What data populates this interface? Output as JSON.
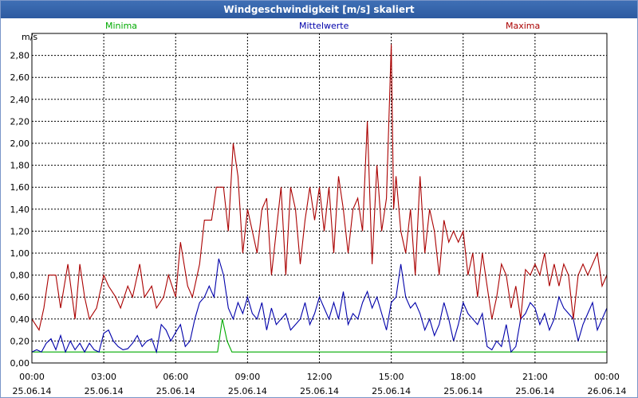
{
  "window": {
    "title": "Windgeschwindigkeit [m/s] skaliert"
  },
  "colors": {
    "minima": "#00aa00",
    "mittel": "#0000aa",
    "maxima": "#aa0000",
    "titlebar": "#2c5aa0"
  },
  "chart_data": {
    "type": "line",
    "title": "Windgeschwindigkeit [m/s] skaliert",
    "ylabel": "m/s",
    "ylim": [
      0,
      3.0
    ],
    "xlim": [
      0,
      24
    ],
    "grid": true,
    "yticks": [
      "0,00",
      "0,20",
      "0,40",
      "0,60",
      "0,80",
      "1,00",
      "1,20",
      "1,40",
      "1,60",
      "1,80",
      "2,00",
      "2,20",
      "2,40",
      "2,60",
      "2,80"
    ],
    "xticks": [
      {
        "time": "00:00",
        "date": "25.06.14"
      },
      {
        "time": "03:00",
        "date": "25.06.14"
      },
      {
        "time": "06:00",
        "date": "25.06.14"
      },
      {
        "time": "09:00",
        "date": "25.06.14"
      },
      {
        "time": "12:00",
        "date": "25.06.14"
      },
      {
        "time": "15:00",
        "date": "25.06.14"
      },
      {
        "time": "18:00",
        "date": "25.06.14"
      },
      {
        "time": "21:00",
        "date": "25.06.14"
      },
      {
        "time": "00:00",
        "date": "26.06.14"
      }
    ],
    "series": [
      {
        "name": "Minima",
        "x": [
          0,
          7.75,
          7.95,
          8.15,
          8.35,
          24
        ],
        "values": [
          0.1,
          0.1,
          0.4,
          0.2,
          0.1,
          0.1
        ]
      },
      {
        "name": "Mittelwerte",
        "x": [
          0.0,
          0.2,
          0.4,
          0.6,
          0.8,
          1.0,
          1.2,
          1.4,
          1.6,
          1.8,
          2.0,
          2.2,
          2.4,
          2.6,
          2.8,
          3.0,
          3.2,
          3.4,
          3.6,
          3.8,
          4.0,
          4.2,
          4.4,
          4.6,
          4.8,
          5.0,
          5.2,
          5.4,
          5.6,
          5.8,
          6.0,
          6.2,
          6.4,
          6.6,
          6.8,
          7.0,
          7.2,
          7.4,
          7.6,
          7.8,
          8.0,
          8.2,
          8.4,
          8.6,
          8.8,
          9.0,
          9.2,
          9.4,
          9.6,
          9.8,
          10.0,
          10.2,
          10.4,
          10.6,
          10.8,
          11.0,
          11.2,
          11.4,
          11.6,
          11.8,
          12.0,
          12.2,
          12.4,
          12.6,
          12.8,
          13.0,
          13.2,
          13.4,
          13.6,
          13.8,
          14.0,
          14.2,
          14.4,
          14.6,
          14.8,
          15.0,
          15.2,
          15.4,
          15.6,
          15.8,
          16.0,
          16.2,
          16.4,
          16.6,
          16.8,
          17.0,
          17.2,
          17.4,
          17.6,
          17.8,
          18.0,
          18.2,
          18.4,
          18.6,
          18.8,
          19.0,
          19.2,
          19.4,
          19.6,
          19.8,
          20.0,
          20.2,
          20.4,
          20.6,
          20.8,
          21.0,
          21.2,
          21.4,
          21.6,
          21.8,
          22.0,
          22.2,
          22.4,
          22.6,
          22.8,
          23.0,
          23.2,
          23.4,
          23.6,
          23.8,
          24.0
        ],
        "values": [
          0.1,
          0.12,
          0.1,
          0.18,
          0.22,
          0.12,
          0.25,
          0.1,
          0.2,
          0.12,
          0.18,
          0.1,
          0.18,
          0.12,
          0.1,
          0.27,
          0.3,
          0.2,
          0.15,
          0.12,
          0.13,
          0.18,
          0.25,
          0.15,
          0.2,
          0.22,
          0.1,
          0.35,
          0.3,
          0.2,
          0.28,
          0.35,
          0.15,
          0.2,
          0.4,
          0.55,
          0.6,
          0.7,
          0.6,
          0.95,
          0.8,
          0.5,
          0.4,
          0.55,
          0.45,
          0.6,
          0.45,
          0.4,
          0.55,
          0.3,
          0.5,
          0.35,
          0.4,
          0.45,
          0.3,
          0.35,
          0.4,
          0.55,
          0.35,
          0.45,
          0.6,
          0.5,
          0.4,
          0.55,
          0.4,
          0.65,
          0.35,
          0.45,
          0.4,
          0.55,
          0.65,
          0.5,
          0.6,
          0.45,
          0.3,
          0.55,
          0.6,
          0.9,
          0.6,
          0.5,
          0.55,
          0.45,
          0.3,
          0.4,
          0.25,
          0.35,
          0.55,
          0.4,
          0.2,
          0.35,
          0.55,
          0.45,
          0.4,
          0.35,
          0.45,
          0.15,
          0.12,
          0.2,
          0.15,
          0.35,
          0.1,
          0.15,
          0.4,
          0.45,
          0.55,
          0.5,
          0.35,
          0.45,
          0.3,
          0.4,
          0.6,
          0.5,
          0.45,
          0.4,
          0.2,
          0.35,
          0.45,
          0.55,
          0.3,
          0.4,
          0.5
        ],
        "color": "#0000aa"
      },
      {
        "name": "Maxima",
        "x": [
          0.0,
          0.3,
          0.5,
          0.7,
          1.0,
          1.2,
          1.5,
          1.8,
          2.0,
          2.2,
          2.4,
          2.7,
          3.0,
          3.2,
          3.5,
          3.7,
          4.0,
          4.2,
          4.5,
          4.7,
          5.0,
          5.2,
          5.5,
          5.7,
          6.0,
          6.2,
          6.5,
          6.7,
          7.0,
          7.2,
          7.5,
          7.7,
          8.0,
          8.2,
          8.4,
          8.6,
          8.8,
          9.0,
          9.2,
          9.4,
          9.6,
          9.8,
          10.0,
          10.2,
          10.4,
          10.6,
          10.8,
          11.0,
          11.2,
          11.4,
          11.6,
          11.8,
          12.0,
          12.2,
          12.4,
          12.6,
          12.8,
          13.0,
          13.2,
          13.4,
          13.6,
          13.8,
          14.0,
          14.2,
          14.4,
          14.6,
          14.8,
          15.0,
          15.1,
          15.2,
          15.4,
          15.6,
          15.8,
          16.0,
          16.2,
          16.4,
          16.6,
          16.8,
          17.0,
          17.2,
          17.4,
          17.6,
          17.8,
          18.0,
          18.2,
          18.4,
          18.6,
          18.8,
          19.0,
          19.2,
          19.4,
          19.6,
          19.8,
          20.0,
          20.2,
          20.4,
          20.6,
          20.8,
          21.0,
          21.2,
          21.4,
          21.6,
          21.8,
          22.0,
          22.2,
          22.4,
          22.6,
          22.8,
          23.0,
          23.2,
          23.4,
          23.6,
          23.8,
          24.0
        ],
        "values": [
          0.4,
          0.3,
          0.5,
          0.8,
          0.8,
          0.5,
          0.9,
          0.4,
          0.9,
          0.6,
          0.4,
          0.5,
          0.8,
          0.7,
          0.6,
          0.5,
          0.7,
          0.6,
          0.9,
          0.6,
          0.7,
          0.5,
          0.6,
          0.8,
          0.6,
          1.1,
          0.7,
          0.6,
          0.9,
          1.3,
          1.3,
          1.6,
          1.6,
          1.2,
          2.0,
          1.7,
          1.0,
          1.4,
          1.2,
          1.0,
          1.4,
          1.5,
          0.8,
          1.2,
          1.6,
          0.8,
          1.6,
          1.4,
          0.9,
          1.3,
          1.6,
          1.3,
          1.6,
          1.2,
          1.6,
          1.0,
          1.7,
          1.4,
          1.0,
          1.4,
          1.5,
          1.2,
          2.2,
          0.9,
          1.8,
          1.2,
          1.5,
          2.9,
          1.4,
          1.7,
          1.2,
          1.0,
          1.4,
          0.8,
          1.7,
          1.0,
          1.4,
          1.2,
          0.8,
          1.3,
          1.1,
          1.2,
          1.1,
          1.2,
          0.8,
          1.0,
          0.6,
          1.0,
          0.7,
          0.4,
          0.6,
          0.9,
          0.8,
          0.5,
          0.7,
          0.4,
          0.85,
          0.8,
          0.9,
          0.8,
          1.0,
          0.7,
          0.9,
          0.7,
          0.9,
          0.8,
          0.4,
          0.8,
          0.9,
          0.8,
          0.9,
          1.0,
          0.7,
          0.8
        ],
        "color": "#aa0000"
      }
    ]
  }
}
